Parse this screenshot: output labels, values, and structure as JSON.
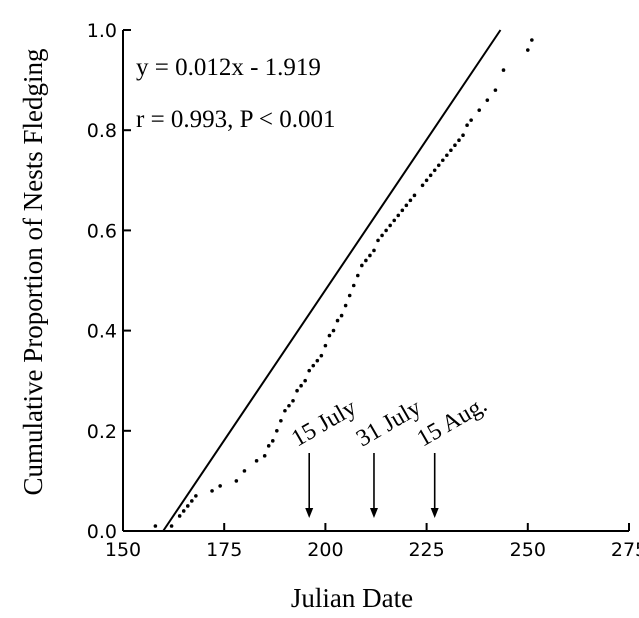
{
  "chart_data": {
    "type": "scatter",
    "xlabel": "Julian Date",
    "ylabel": "Cumulative Proportion of Nests Fledging",
    "xlim": [
      150,
      275
    ],
    "ylim": [
      0.0,
      1.0
    ],
    "xticks": [
      150,
      175,
      200,
      225,
      250,
      275
    ],
    "yticks": [
      0.0,
      0.2,
      0.4,
      0.6,
      0.8,
      1.0
    ],
    "xtick_labels": [
      "150",
      "175",
      "200",
      "225",
      "250",
      "275"
    ],
    "ytick_labels": [
      "0.0",
      "0.2",
      "0.4",
      "0.6",
      "0.8",
      "1.0"
    ],
    "grid": false,
    "legend": "none",
    "annotations": {
      "equation": "y = 0.012x - 1.919",
      "stats": "r = 0.993, P < 0.001"
    },
    "fit_line": {
      "slope": 0.012,
      "intercept": -1.919
    },
    "markers": [
      {
        "label": "15 July",
        "x": 196
      },
      {
        "label": "31 July",
        "x": 212
      },
      {
        "label": "15 Aug.",
        "x": 227
      }
    ],
    "series": [
      {
        "x": [
          158,
          162,
          164,
          165,
          166,
          167,
          168,
          172,
          174,
          178,
          180,
          183,
          185,
          186,
          187,
          188,
          189,
          190,
          191,
          192,
          193,
          194,
          195,
          196,
          197,
          198,
          199,
          200,
          201,
          202,
          203,
          204,
          205,
          206,
          207,
          208,
          209,
          210,
          211,
          212,
          213,
          214,
          215,
          216,
          217,
          218,
          219,
          220,
          221,
          222,
          224,
          225,
          226,
          227,
          228,
          229,
          230,
          231,
          232,
          233,
          234,
          235,
          236,
          238,
          240,
          242,
          244,
          250,
          251
        ],
        "y": [
          0.01,
          0.01,
          0.03,
          0.04,
          0.05,
          0.06,
          0.07,
          0.08,
          0.09,
          0.1,
          0.12,
          0.14,
          0.15,
          0.17,
          0.18,
          0.2,
          0.22,
          0.24,
          0.25,
          0.26,
          0.28,
          0.29,
          0.3,
          0.32,
          0.33,
          0.34,
          0.35,
          0.37,
          0.39,
          0.4,
          0.42,
          0.43,
          0.45,
          0.47,
          0.49,
          0.51,
          0.53,
          0.54,
          0.55,
          0.56,
          0.58,
          0.59,
          0.6,
          0.61,
          0.62,
          0.63,
          0.64,
          0.65,
          0.66,
          0.67,
          0.69,
          0.7,
          0.71,
          0.72,
          0.73,
          0.74,
          0.75,
          0.76,
          0.77,
          0.78,
          0.79,
          0.81,
          0.82,
          0.84,
          0.86,
          0.88,
          0.92,
          0.96,
          0.98
        ]
      }
    ]
  }
}
